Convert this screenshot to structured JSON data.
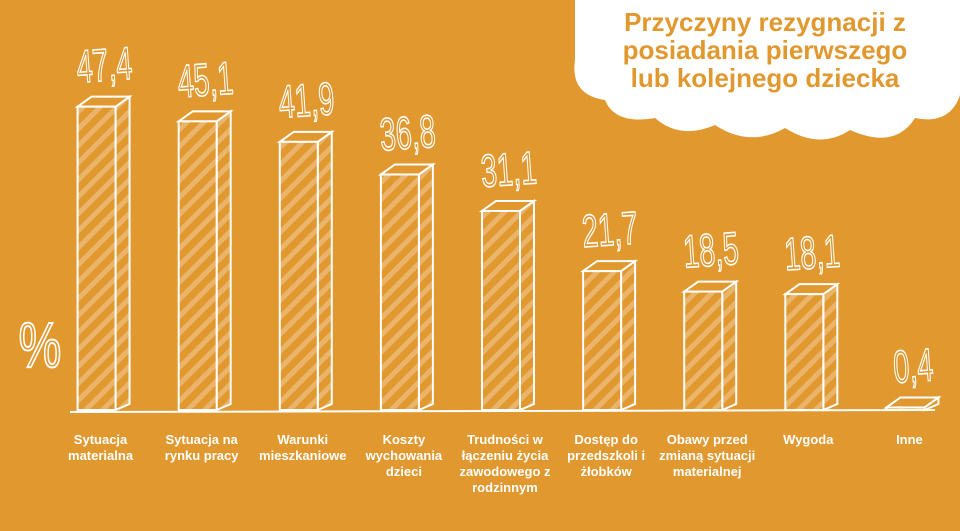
{
  "chart_data": {
    "type": "bar",
    "title": "Przyczyny rezygnacji z posiadania pierwszego lub kolejnego dziecka",
    "y_label": "%",
    "categories": [
      "Sytuacja materialna",
      "Sytuacja na rynku pracy",
      "Warunki mieszkaniowe",
      "Koszty wychowania dzieci",
      "Trudności w łączeniu życia zawodowego z rodzinnym",
      "Dostęp do przedszkoli i żłobków",
      "Obawy przed zmianą sytuacji materialnej",
      "Wygoda",
      "Inne"
    ],
    "values": [
      47.4,
      45.1,
      41.9,
      36.8,
      31.1,
      21.7,
      18.5,
      18.1,
      0.4
    ],
    "value_labels": [
      "47,4",
      "45,1",
      "41,9",
      "36,8",
      "31,1",
      "21,7",
      "18,5",
      "18,1",
      "0,4"
    ],
    "color": "#e0982f",
    "ylim": [
      0,
      50
    ]
  }
}
